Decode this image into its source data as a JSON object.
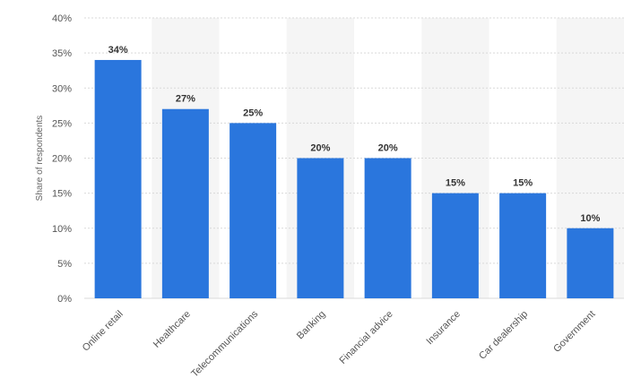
{
  "chart_data": {
    "type": "bar",
    "categories": [
      "Online retail",
      "Healthcare",
      "Telecommunications",
      "Banking",
      "Financial advice",
      "Insurance",
      "Car dealership",
      "Government"
    ],
    "values": [
      34,
      27,
      25,
      20,
      20,
      15,
      15,
      10
    ],
    "data_labels": [
      "34%",
      "27%",
      "25%",
      "20%",
      "20%",
      "15%",
      "15%",
      "10%"
    ],
    "ylabel": "Share of respondents",
    "ylim": [
      0,
      40
    ],
    "yticks": [
      0,
      5,
      10,
      15,
      20,
      25,
      30,
      35,
      40
    ],
    "ytick_labels": [
      "0%",
      "5%",
      "10%",
      "15%",
      "20%",
      "25%",
      "30%",
      "35%",
      "40%"
    ],
    "grid": true,
    "alternating_band_color": "#f5f5f5",
    "bar_color": "#2a76dd",
    "gridline_color": "#d9d9d9"
  }
}
